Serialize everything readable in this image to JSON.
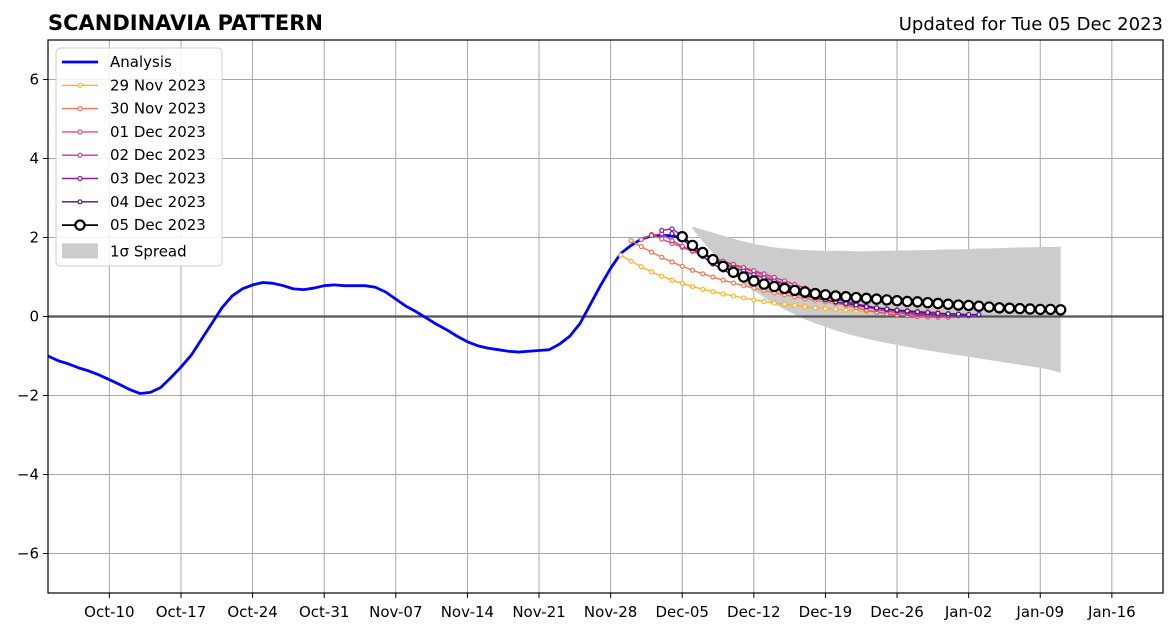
{
  "chart_data": {
    "type": "line",
    "title": "SCANDINAVIA PATTERN",
    "subtitle": "Updated for Tue 05 Dec 2023",
    "xlim": [
      "2023-10-04",
      "2024-01-21"
    ],
    "ylim": [
      -7,
      7
    ],
    "xticks": [
      {
        "date": "2023-10-10",
        "label": "Oct-10"
      },
      {
        "date": "2023-10-17",
        "label": "Oct-17"
      },
      {
        "date": "2023-10-24",
        "label": "Oct-24"
      },
      {
        "date": "2023-10-31",
        "label": "Oct-31"
      },
      {
        "date": "2023-11-07",
        "label": "Nov-07"
      },
      {
        "date": "2023-11-14",
        "label": "Nov-14"
      },
      {
        "date": "2023-11-21",
        "label": "Nov-21"
      },
      {
        "date": "2023-11-28",
        "label": "Nov-28"
      },
      {
        "date": "2023-12-05",
        "label": "Dec-05"
      },
      {
        "date": "2023-12-12",
        "label": "Dec-12"
      },
      {
        "date": "2023-12-19",
        "label": "Dec-19"
      },
      {
        "date": "2023-12-26",
        "label": "Dec-26"
      },
      {
        "date": "2024-01-02",
        "label": "Jan-02"
      },
      {
        "date": "2024-01-09",
        "label": "Jan-09"
      },
      {
        "date": "2024-01-16",
        "label": "Jan-16"
      }
    ],
    "yticks": [
      {
        "value": -6,
        "label": "−6"
      },
      {
        "value": -4,
        "label": "−4"
      },
      {
        "value": -2,
        "label": "−2"
      },
      {
        "value": 0,
        "label": "0"
      },
      {
        "value": 2,
        "label": "2"
      },
      {
        "value": 4,
        "label": "4"
      },
      {
        "value": 6,
        "label": "6"
      }
    ],
    "grid": true,
    "legend_position": "top-left",
    "analysis": {
      "name": "Analysis",
      "color": "#0000ff",
      "start_date": "2023-10-04",
      "values": [
        -1.0,
        -1.12,
        -1.2,
        -1.3,
        -1.38,
        -1.48,
        -1.6,
        -1.72,
        -1.85,
        -1.95,
        -1.92,
        -1.8,
        -1.55,
        -1.28,
        -0.98,
        -0.58,
        -0.18,
        0.22,
        0.52,
        0.7,
        0.8,
        0.86,
        0.84,
        0.78,
        0.7,
        0.68,
        0.72,
        0.78,
        0.8,
        0.78,
        0.78,
        0.78,
        0.74,
        0.62,
        0.44,
        0.26,
        0.12,
        -0.04,
        -0.2,
        -0.34,
        -0.5,
        -0.64,
        -0.74,
        -0.8,
        -0.84,
        -0.88,
        -0.9,
        -0.88,
        -0.86,
        -0.84,
        -0.7,
        -0.5,
        -0.18,
        0.3,
        0.78,
        1.22,
        1.6,
        1.8,
        1.96,
        2.04,
        2.06,
        2.04,
        1.98
      ]
    },
    "forecasts": [
      {
        "name": "29 Nov 2023",
        "color": "#fcb428",
        "start_date": "2023-11-29",
        "values": [
          1.55,
          1.4,
          1.26,
          1.13,
          1.02,
          0.92,
          0.84,
          0.76,
          0.69,
          0.63,
          0.57,
          0.52,
          0.47,
          0.42,
          0.38,
          0.34,
          0.31,
          0.28,
          0.25,
          0.22,
          0.2,
          0.18,
          0.16,
          0.14,
          0.13,
          0.12,
          0.11,
          0.1,
          0.1,
          0.1,
          0.09
        ]
      },
      {
        "name": "30 Nov 2023",
        "color": "#f07a50",
        "start_date": "2023-11-30",
        "values": [
          1.92,
          1.77,
          1.63,
          1.5,
          1.38,
          1.27,
          1.17,
          1.08,
          1.0,
          0.92,
          0.85,
          0.78,
          0.72,
          0.66,
          0.6,
          0.55,
          0.5,
          0.45,
          0.41,
          0.37,
          0.33,
          0.29,
          0.26,
          0.23,
          0.21,
          0.19,
          0.17,
          0.15,
          0.13,
          0.12,
          0.12
        ]
      },
      {
        "name": "01 Dec 2023",
        "color": "#e0566a",
        "start_date": "2023-12-01",
        "values": [
          1.95,
          2.08,
          1.96,
          1.85,
          1.75,
          1.65,
          1.55,
          1.46,
          1.38,
          1.3,
          1.22,
          1.13,
          1.03,
          0.93,
          0.83,
          0.73,
          0.63,
          0.53,
          0.44,
          0.36,
          0.29,
          0.22,
          0.16,
          0.11,
          0.07,
          0.04,
          0.02,
          0.0,
          -0.01,
          -0.02,
          -0.02
        ]
      },
      {
        "name": "02 Dec 2023",
        "color": "#c13e8e",
        "start_date": "2023-12-02",
        "values": [
          2.05,
          2.1,
          1.92,
          1.78,
          1.66,
          1.56,
          1.48,
          1.4,
          1.32,
          1.24,
          1.16,
          1.08,
          0.99,
          0.9,
          0.81,
          0.72,
          0.63,
          0.54,
          0.46,
          0.38,
          0.31,
          0.24,
          0.18,
          0.14,
          0.1,
          0.07,
          0.05,
          0.03,
          0.02,
          0.02
        ]
      },
      {
        "name": "03 Dec 2023",
        "color": "#8a1ea0",
        "start_date": "2023-12-03",
        "values": [
          2.18,
          2.22,
          2.05,
          1.82,
          1.62,
          1.46,
          1.34,
          1.24,
          1.15,
          1.06,
          0.98,
          0.9,
          0.82,
          0.74,
          0.66,
          0.58,
          0.51,
          0.44,
          0.38,
          0.32,
          0.27,
          0.22,
          0.18,
          0.14,
          0.11,
          0.08,
          0.06,
          0.04,
          0.03,
          0.02,
          0.02
        ]
      },
      {
        "name": "04 Dec 2023",
        "color": "#4a0c8c",
        "start_date": "2023-12-04",
        "values": [
          2.1,
          1.95,
          1.75,
          1.52,
          1.33,
          1.18,
          1.05,
          0.95,
          0.86,
          0.78,
          0.71,
          0.64,
          0.58,
          0.52,
          0.47,
          0.42,
          0.37,
          0.33,
          0.29,
          0.25,
          0.22,
          0.19,
          0.16,
          0.14,
          0.12,
          0.1,
          0.08,
          0.07,
          0.06,
          0.05,
          0.05
        ]
      }
    ],
    "current": {
      "name": "05 Dec 2023",
      "color": "#000000",
      "start_date": "2023-12-05",
      "values": [
        2.02,
        1.8,
        1.62,
        1.44,
        1.27,
        1.12,
        1.0,
        0.9,
        0.82,
        0.76,
        0.71,
        0.66,
        0.62,
        0.58,
        0.55,
        0.52,
        0.5,
        0.48,
        0.46,
        0.44,
        0.42,
        0.4,
        0.38,
        0.37,
        0.35,
        0.33,
        0.31,
        0.29,
        0.28,
        0.26,
        0.24,
        0.22,
        0.21,
        0.2,
        0.19,
        0.18,
        0.18,
        0.17
      ]
    },
    "spread": {
      "name": "1σ Spread",
      "color": "#cccccc",
      "start_date": "2023-12-06",
      "upper": [
        2.28,
        2.2,
        2.12,
        2.04,
        1.97,
        1.9,
        1.84,
        1.79,
        1.75,
        1.72,
        1.7,
        1.68,
        1.67,
        1.66,
        1.66,
        1.66,
        1.65,
        1.65,
        1.66,
        1.66,
        1.67,
        1.67,
        1.68,
        1.68,
        1.69,
        1.7,
        1.7,
        1.71,
        1.72,
        1.72,
        1.73,
        1.74,
        1.75,
        1.75,
        1.76,
        1.76,
        1.77
      ],
      "lower": [
        2.22,
        1.9,
        1.6,
        1.32,
        1.08,
        0.86,
        0.66,
        0.48,
        0.32,
        0.18,
        0.05,
        -0.07,
        -0.17,
        -0.26,
        -0.35,
        -0.43,
        -0.5,
        -0.56,
        -0.62,
        -0.67,
        -0.72,
        -0.77,
        -0.82,
        -0.86,
        -0.9,
        -0.94,
        -0.98,
        -1.02,
        -1.06,
        -1.1,
        -1.14,
        -1.18,
        -1.22,
        -1.26,
        -1.3,
        -1.35,
        -1.42
      ]
    }
  }
}
